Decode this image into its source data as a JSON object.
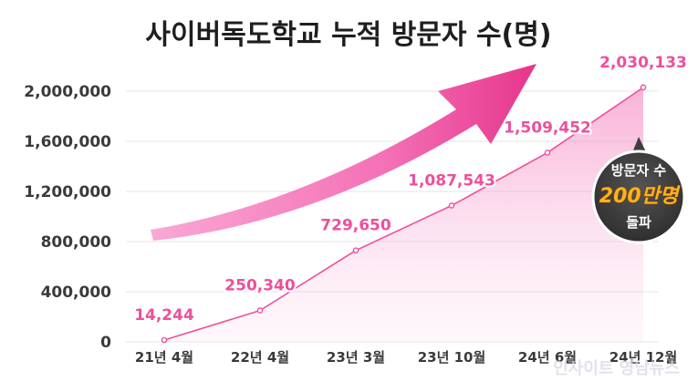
{
  "chart_data": {
    "type": "area",
    "title": "사이버독도학교 누적 방문자 수(명)",
    "categories": [
      "21년 4월",
      "22년 4월",
      "23년 3월",
      "23년 10월",
      "24년 6월",
      "24년 12월"
    ],
    "values": [
      14244,
      250340,
      729650,
      1087543,
      1509452,
      2030133
    ],
    "data_labels": [
      "14,244",
      "250,340",
      "729,650",
      "1,087,543",
      "1,509,452",
      "2,030,133"
    ],
    "y_ticks": [
      "0",
      "400,000",
      "800,000",
      "1,200,000",
      "1,600,000",
      "2,000,000"
    ],
    "y_tick_values": [
      0,
      400000,
      800000,
      1200000,
      1600000,
      2000000
    ],
    "ylim": [
      0,
      2000000
    ],
    "grid": true,
    "xlabel": "",
    "ylabel": ""
  },
  "badge": {
    "line1": "방문자 수",
    "highlight": "200만명",
    "line3": "돌파"
  },
  "watermark": "인사이트 영남뉴스",
  "colors": {
    "accent": "#ee4f9c",
    "badge_bg": "#3f3f3f",
    "badge_highlight": "#ffb21c",
    "title": "#1e1e1e",
    "grid": "#e6e6e6"
  }
}
